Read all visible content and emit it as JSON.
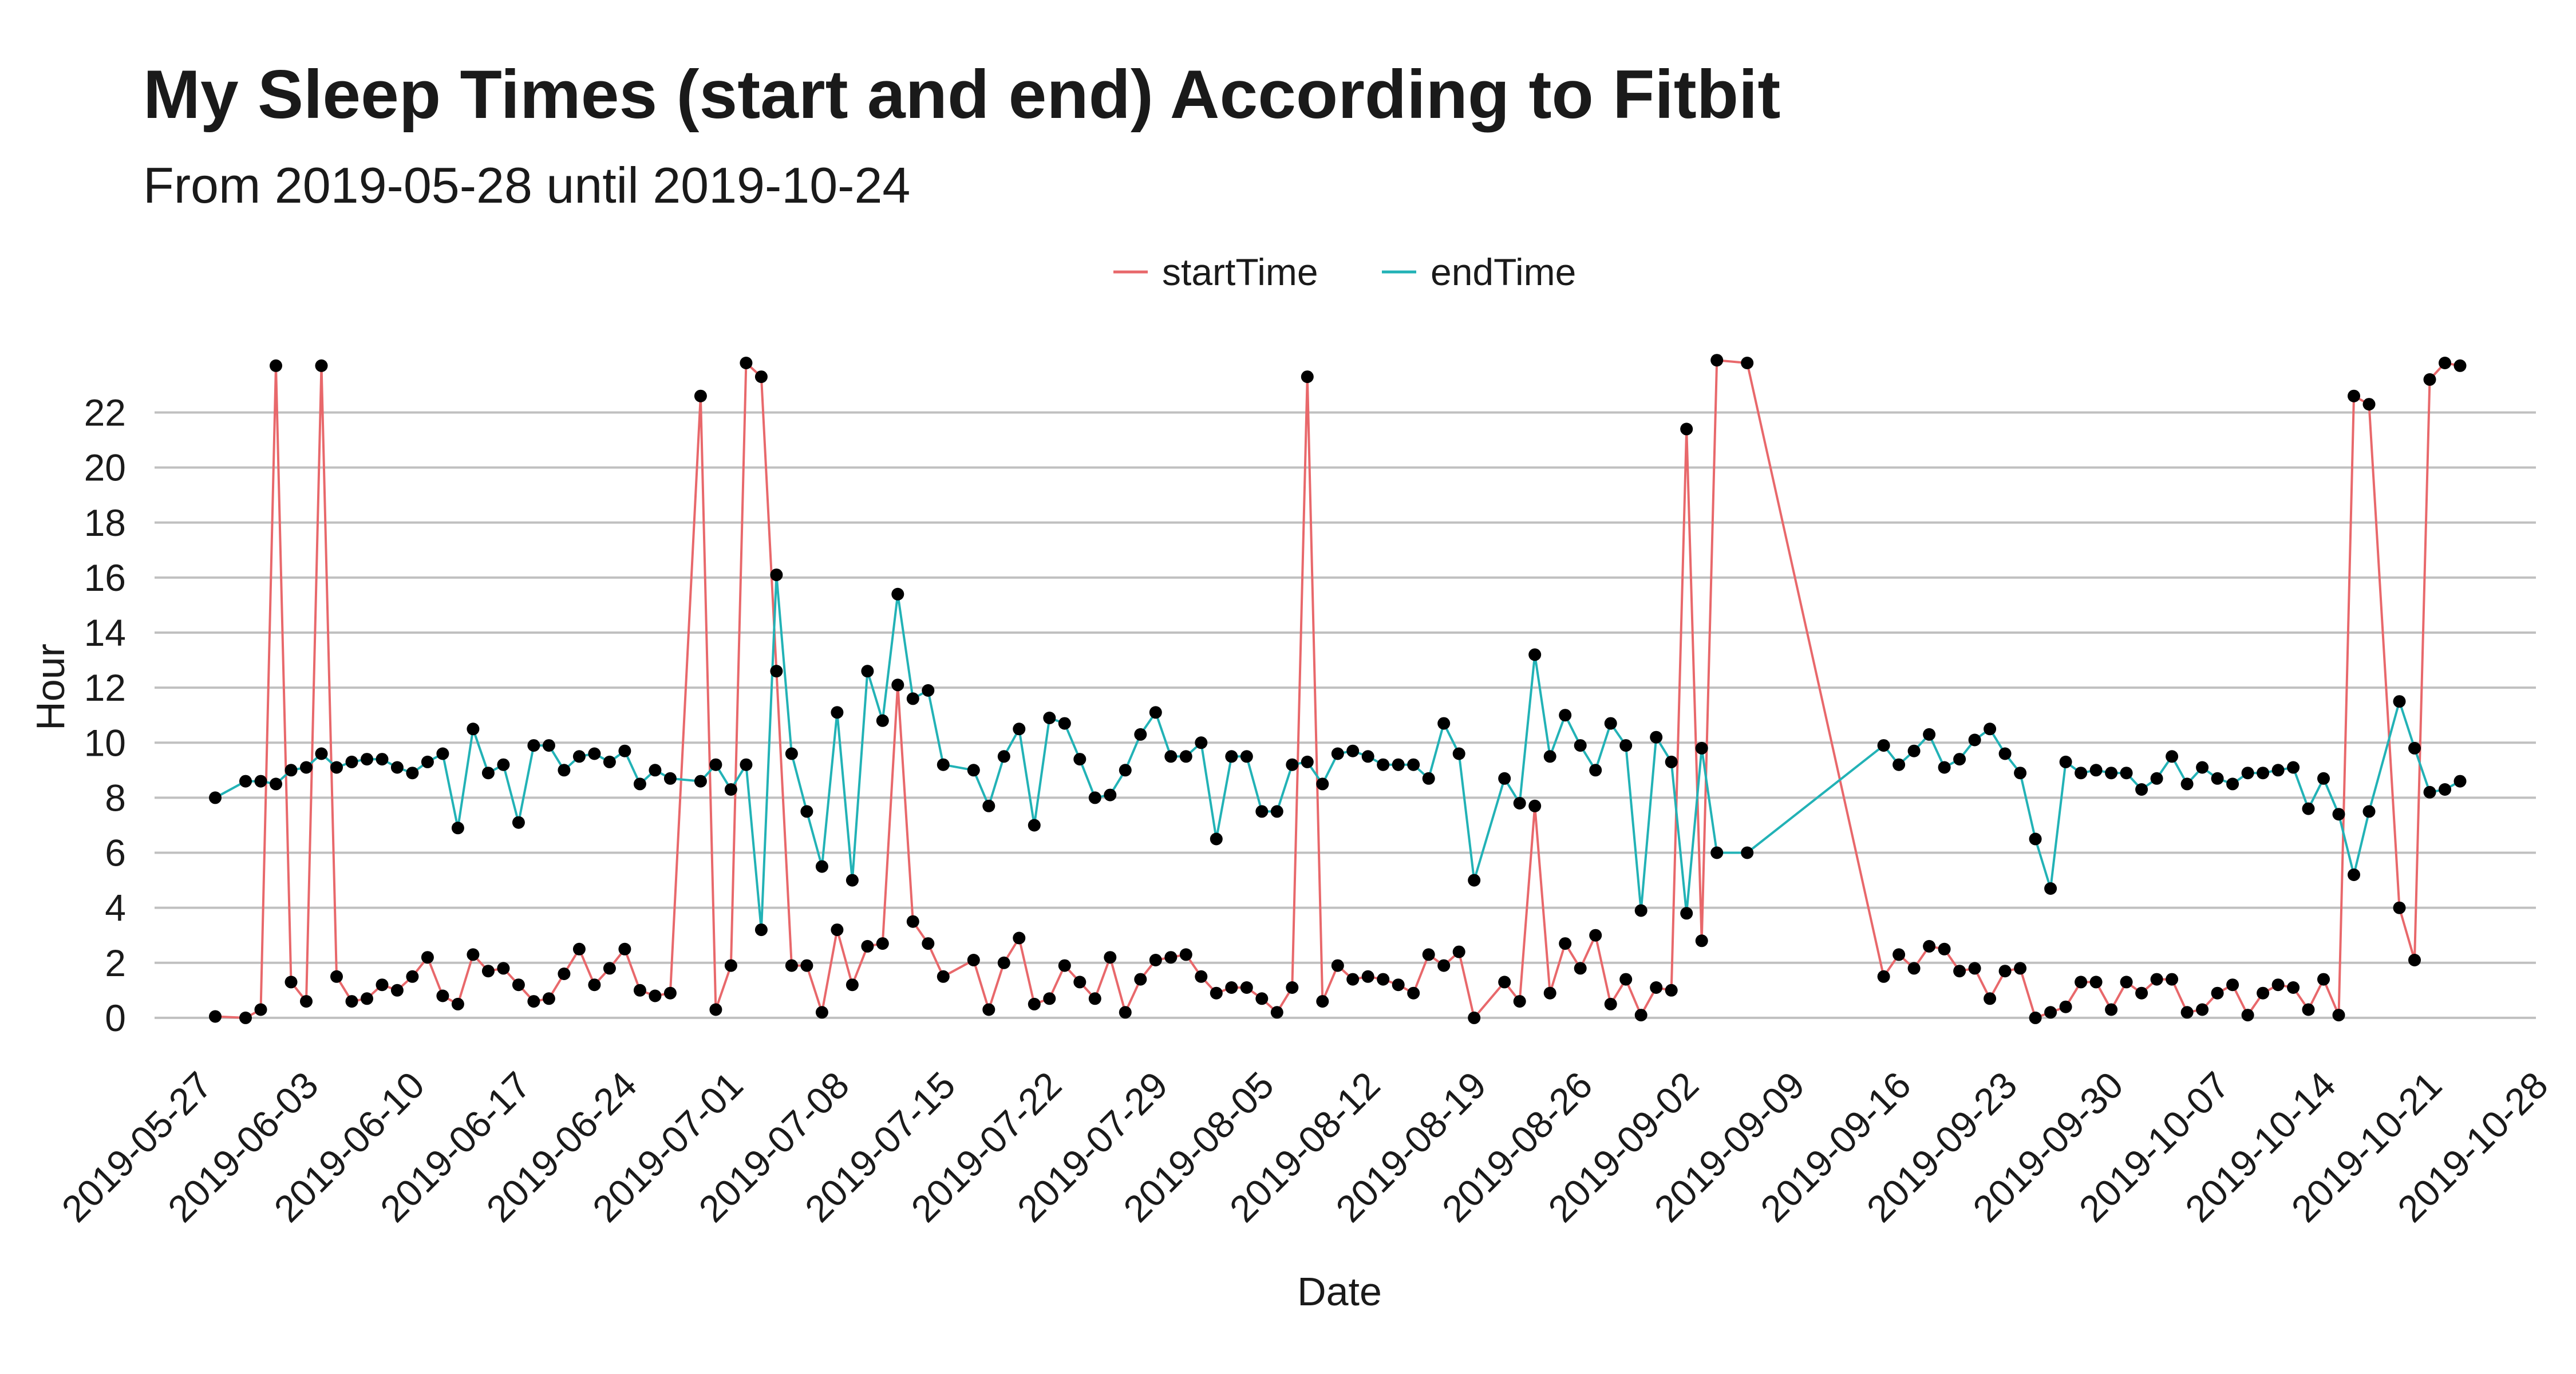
{
  "title": "My Sleep Times (start and end) According to Fitbit",
  "subtitle": "From 2019-05-28 until 2019-10-24",
  "chart_data": {
    "type": "line",
    "xlabel": "Date",
    "ylabel": "Hour",
    "ylim": [
      -1.5,
      24.3
    ],
    "y_ticks": [
      0,
      2,
      4,
      6,
      8,
      10,
      12,
      14,
      16,
      18,
      20,
      22
    ],
    "x_ticks": [
      "2019-05-27",
      "2019-06-03",
      "2019-06-10",
      "2019-06-17",
      "2019-06-24",
      "2019-07-01",
      "2019-07-08",
      "2019-07-15",
      "2019-07-22",
      "2019-07-29",
      "2019-08-05",
      "2019-08-12",
      "2019-08-19",
      "2019-08-26",
      "2019-09-02",
      "2019-09-09",
      "2019-09-16",
      "2019-09-23",
      "2019-09-30",
      "2019-10-07",
      "2019-10-14",
      "2019-10-21",
      "2019-10-28"
    ],
    "xlim": [
      "2019-05-24",
      "2019-10-28"
    ],
    "grid": true,
    "legend_position": "top",
    "point_color": "#000000",
    "series": [
      {
        "name": "startTime",
        "color": "#e8686b",
        "points": [
          [
            "2019-05-28",
            0.05
          ],
          [
            "2019-05-30",
            0.0
          ],
          [
            "2019-05-31",
            0.3
          ],
          [
            "2019-06-01",
            23.7
          ],
          [
            "2019-06-02",
            1.3
          ],
          [
            "2019-06-03",
            0.6
          ],
          [
            "2019-06-04",
            23.7
          ],
          [
            "2019-06-05",
            1.5
          ],
          [
            "2019-06-06",
            0.6
          ],
          [
            "2019-06-07",
            0.7
          ],
          [
            "2019-06-08",
            1.2
          ],
          [
            "2019-06-09",
            1.0
          ],
          [
            "2019-06-10",
            1.5
          ],
          [
            "2019-06-11",
            2.2
          ],
          [
            "2019-06-12",
            0.8
          ],
          [
            "2019-06-13",
            0.5
          ],
          [
            "2019-06-14",
            2.3
          ],
          [
            "2019-06-15",
            1.7
          ],
          [
            "2019-06-16",
            1.8
          ],
          [
            "2019-06-17",
            1.2
          ],
          [
            "2019-06-18",
            0.6
          ],
          [
            "2019-06-19",
            0.7
          ],
          [
            "2019-06-20",
            1.6
          ],
          [
            "2019-06-21",
            2.5
          ],
          [
            "2019-06-22",
            1.2
          ],
          [
            "2019-06-23",
            1.8
          ],
          [
            "2019-06-24",
            2.5
          ],
          [
            "2019-06-25",
            1.0
          ],
          [
            "2019-06-26",
            0.8
          ],
          [
            "2019-06-27",
            0.9
          ],
          [
            "2019-06-29",
            22.6
          ],
          [
            "2019-06-30",
            0.3
          ],
          [
            "2019-07-01",
            1.9
          ],
          [
            "2019-07-02",
            23.8
          ],
          [
            "2019-07-03",
            23.3
          ],
          [
            "2019-07-04",
            12.6
          ],
          [
            "2019-07-05",
            1.9
          ],
          [
            "2019-07-06",
            1.9
          ],
          [
            "2019-07-07",
            0.2
          ],
          [
            "2019-07-08",
            3.2
          ],
          [
            "2019-07-09",
            1.2
          ],
          [
            "2019-07-10",
            2.6
          ],
          [
            "2019-07-11",
            2.7
          ],
          [
            "2019-07-12",
            12.1
          ],
          [
            "2019-07-13",
            3.5
          ],
          [
            "2019-07-14",
            2.7
          ],
          [
            "2019-07-15",
            1.5
          ],
          [
            "2019-07-17",
            2.1
          ],
          [
            "2019-07-18",
            0.3
          ],
          [
            "2019-07-19",
            2.0
          ],
          [
            "2019-07-20",
            2.9
          ],
          [
            "2019-07-21",
            0.5
          ],
          [
            "2019-07-22",
            0.7
          ],
          [
            "2019-07-23",
            1.9
          ],
          [
            "2019-07-24",
            1.3
          ],
          [
            "2019-07-25",
            0.7
          ],
          [
            "2019-07-26",
            2.2
          ],
          [
            "2019-07-27",
            0.2
          ],
          [
            "2019-07-28",
            1.4
          ],
          [
            "2019-07-29",
            2.1
          ],
          [
            "2019-07-30",
            2.2
          ],
          [
            "2019-07-31",
            2.3
          ],
          [
            "2019-08-01",
            1.5
          ],
          [
            "2019-08-02",
            0.9
          ],
          [
            "2019-08-03",
            1.1
          ],
          [
            "2019-08-04",
            1.1
          ],
          [
            "2019-08-05",
            0.7
          ],
          [
            "2019-08-06",
            0.2
          ],
          [
            "2019-08-07",
            1.1
          ],
          [
            "2019-08-08",
            23.3
          ],
          [
            "2019-08-09",
            0.6
          ],
          [
            "2019-08-10",
            1.9
          ],
          [
            "2019-08-11",
            1.4
          ],
          [
            "2019-08-12",
            1.5
          ],
          [
            "2019-08-13",
            1.4
          ],
          [
            "2019-08-14",
            1.2
          ],
          [
            "2019-08-15",
            0.9
          ],
          [
            "2019-08-16",
            2.3
          ],
          [
            "2019-08-17",
            1.9
          ],
          [
            "2019-08-18",
            2.4
          ],
          [
            "2019-08-19",
            0.0
          ],
          [
            "2019-08-21",
            1.3
          ],
          [
            "2019-08-22",
            0.6
          ],
          [
            "2019-08-23",
            7.7
          ],
          [
            "2019-08-24",
            0.9
          ],
          [
            "2019-08-25",
            2.7
          ],
          [
            "2019-08-26",
            1.8
          ],
          [
            "2019-08-27",
            3.0
          ],
          [
            "2019-08-28",
            0.5
          ],
          [
            "2019-08-29",
            1.4
          ],
          [
            "2019-08-30",
            0.1
          ],
          [
            "2019-08-31",
            1.1
          ],
          [
            "2019-09-01",
            1.0
          ],
          [
            "2019-09-02",
            21.4
          ],
          [
            "2019-09-03",
            2.8
          ],
          [
            "2019-09-04",
            23.9
          ],
          [
            "2019-09-06",
            23.8
          ],
          [
            "2019-09-15",
            1.5
          ],
          [
            "2019-09-16",
            2.3
          ],
          [
            "2019-09-17",
            1.8
          ],
          [
            "2019-09-18",
            2.6
          ],
          [
            "2019-09-19",
            2.5
          ],
          [
            "2019-09-20",
            1.7
          ],
          [
            "2019-09-21",
            1.8
          ],
          [
            "2019-09-22",
            0.7
          ],
          [
            "2019-09-23",
            1.7
          ],
          [
            "2019-09-24",
            1.8
          ],
          [
            "2019-09-25",
            0.0
          ],
          [
            "2019-09-26",
            0.2
          ],
          [
            "2019-09-27",
            0.4
          ],
          [
            "2019-09-28",
            1.3
          ],
          [
            "2019-09-29",
            1.3
          ],
          [
            "2019-09-30",
            0.3
          ],
          [
            "2019-10-01",
            1.3
          ],
          [
            "2019-10-02",
            0.9
          ],
          [
            "2019-10-03",
            1.4
          ],
          [
            "2019-10-04",
            1.4
          ],
          [
            "2019-10-05",
            0.2
          ],
          [
            "2019-10-06",
            0.3
          ],
          [
            "2019-10-07",
            0.9
          ],
          [
            "2019-10-08",
            1.2
          ],
          [
            "2019-10-09",
            0.1
          ],
          [
            "2019-10-10",
            0.9
          ],
          [
            "2019-10-11",
            1.2
          ],
          [
            "2019-10-12",
            1.1
          ],
          [
            "2019-10-13",
            0.3
          ],
          [
            "2019-10-14",
            1.4
          ],
          [
            "2019-10-15",
            0.1
          ],
          [
            "2019-10-16",
            22.6
          ],
          [
            "2019-10-17",
            22.3
          ],
          [
            "2019-10-19",
            4.0
          ],
          [
            "2019-10-20",
            2.1
          ],
          [
            "2019-10-21",
            23.2
          ],
          [
            "2019-10-22",
            23.8
          ],
          [
            "2019-10-23",
            23.7
          ]
        ]
      },
      {
        "name": "endTime",
        "color": "#22b2b6",
        "points": [
          [
            "2019-05-28",
            8.0
          ],
          [
            "2019-05-30",
            8.6
          ],
          [
            "2019-05-31",
            8.6
          ],
          [
            "2019-06-01",
            8.5
          ],
          [
            "2019-06-02",
            9.0
          ],
          [
            "2019-06-03",
            9.1
          ],
          [
            "2019-06-04",
            9.6
          ],
          [
            "2019-06-05",
            9.1
          ],
          [
            "2019-06-06",
            9.3
          ],
          [
            "2019-06-07",
            9.4
          ],
          [
            "2019-06-08",
            9.4
          ],
          [
            "2019-06-09",
            9.1
          ],
          [
            "2019-06-10",
            8.9
          ],
          [
            "2019-06-11",
            9.3
          ],
          [
            "2019-06-12",
            9.6
          ],
          [
            "2019-06-13",
            6.9
          ],
          [
            "2019-06-14",
            10.5
          ],
          [
            "2019-06-15",
            8.9
          ],
          [
            "2019-06-16",
            9.2
          ],
          [
            "2019-06-17",
            7.1
          ],
          [
            "2019-06-18",
            9.9
          ],
          [
            "2019-06-19",
            9.9
          ],
          [
            "2019-06-20",
            9.0
          ],
          [
            "2019-06-21",
            9.5
          ],
          [
            "2019-06-22",
            9.6
          ],
          [
            "2019-06-23",
            9.3
          ],
          [
            "2019-06-24",
            9.7
          ],
          [
            "2019-06-25",
            8.5
          ],
          [
            "2019-06-26",
            9.0
          ],
          [
            "2019-06-27",
            8.7
          ],
          [
            "2019-06-29",
            8.6
          ],
          [
            "2019-06-30",
            9.2
          ],
          [
            "2019-07-01",
            8.3
          ],
          [
            "2019-07-02",
            9.2
          ],
          [
            "2019-07-03",
            3.2
          ],
          [
            "2019-07-04",
            16.1
          ],
          [
            "2019-07-05",
            9.6
          ],
          [
            "2019-07-06",
            7.5
          ],
          [
            "2019-07-07",
            5.5
          ],
          [
            "2019-07-08",
            11.1
          ],
          [
            "2019-07-09",
            5.0
          ],
          [
            "2019-07-10",
            12.6
          ],
          [
            "2019-07-11",
            10.8
          ],
          [
            "2019-07-12",
            15.4
          ],
          [
            "2019-07-13",
            11.6
          ],
          [
            "2019-07-14",
            11.9
          ],
          [
            "2019-07-15",
            9.2
          ],
          [
            "2019-07-17",
            9.0
          ],
          [
            "2019-07-18",
            7.7
          ],
          [
            "2019-07-19",
            9.5
          ],
          [
            "2019-07-20",
            10.5
          ],
          [
            "2019-07-21",
            7.0
          ],
          [
            "2019-07-22",
            10.9
          ],
          [
            "2019-07-23",
            10.7
          ],
          [
            "2019-07-24",
            9.4
          ],
          [
            "2019-07-25",
            8.0
          ],
          [
            "2019-07-26",
            8.1
          ],
          [
            "2019-07-27",
            9.0
          ],
          [
            "2019-07-28",
            10.3
          ],
          [
            "2019-07-29",
            11.1
          ],
          [
            "2019-07-30",
            9.5
          ],
          [
            "2019-07-31",
            9.5
          ],
          [
            "2019-08-01",
            10.0
          ],
          [
            "2019-08-02",
            6.5
          ],
          [
            "2019-08-03",
            9.5
          ],
          [
            "2019-08-04",
            9.5
          ],
          [
            "2019-08-05",
            7.5
          ],
          [
            "2019-08-06",
            7.5
          ],
          [
            "2019-08-07",
            9.2
          ],
          [
            "2019-08-08",
            9.3
          ],
          [
            "2019-08-09",
            8.5
          ],
          [
            "2019-08-10",
            9.6
          ],
          [
            "2019-08-11",
            9.7
          ],
          [
            "2019-08-12",
            9.5
          ],
          [
            "2019-08-13",
            9.2
          ],
          [
            "2019-08-14",
            9.2
          ],
          [
            "2019-08-15",
            9.2
          ],
          [
            "2019-08-16",
            8.7
          ],
          [
            "2019-08-17",
            10.7
          ],
          [
            "2019-08-18",
            9.6
          ],
          [
            "2019-08-19",
            5.0
          ],
          [
            "2019-08-21",
            8.7
          ],
          [
            "2019-08-22",
            7.8
          ],
          [
            "2019-08-23",
            13.2
          ],
          [
            "2019-08-24",
            9.5
          ],
          [
            "2019-08-25",
            11.0
          ],
          [
            "2019-08-26",
            9.9
          ],
          [
            "2019-08-27",
            9.0
          ],
          [
            "2019-08-28",
            10.7
          ],
          [
            "2019-08-29",
            9.9
          ],
          [
            "2019-08-30",
            3.9
          ],
          [
            "2019-08-31",
            10.2
          ],
          [
            "2019-09-01",
            9.3
          ],
          [
            "2019-09-02",
            3.8
          ],
          [
            "2019-09-03",
            9.8
          ],
          [
            "2019-09-04",
            6.0
          ],
          [
            "2019-09-06",
            6.0
          ],
          [
            "2019-09-15",
            9.9
          ],
          [
            "2019-09-16",
            9.2
          ],
          [
            "2019-09-17",
            9.7
          ],
          [
            "2019-09-18",
            10.3
          ],
          [
            "2019-09-19",
            9.1
          ],
          [
            "2019-09-20",
            9.4
          ],
          [
            "2019-09-21",
            10.1
          ],
          [
            "2019-09-22",
            10.5
          ],
          [
            "2019-09-23",
            9.6
          ],
          [
            "2019-09-24",
            8.9
          ],
          [
            "2019-09-25",
            6.5
          ],
          [
            "2019-09-26",
            4.7
          ],
          [
            "2019-09-27",
            9.3
          ],
          [
            "2019-09-28",
            8.9
          ],
          [
            "2019-09-29",
            9.0
          ],
          [
            "2019-09-30",
            8.9
          ],
          [
            "2019-10-01",
            8.9
          ],
          [
            "2019-10-02",
            8.3
          ],
          [
            "2019-10-03",
            8.7
          ],
          [
            "2019-10-04",
            9.5
          ],
          [
            "2019-10-05",
            8.5
          ],
          [
            "2019-10-06",
            9.1
          ],
          [
            "2019-10-07",
            8.7
          ],
          [
            "2019-10-08",
            8.5
          ],
          [
            "2019-10-09",
            8.9
          ],
          [
            "2019-10-10",
            8.9
          ],
          [
            "2019-10-11",
            9.0
          ],
          [
            "2019-10-12",
            9.1
          ],
          [
            "2019-10-13",
            7.6
          ],
          [
            "2019-10-14",
            8.7
          ],
          [
            "2019-10-15",
            7.4
          ],
          [
            "2019-10-16",
            5.2
          ],
          [
            "2019-10-17",
            7.5
          ],
          [
            "2019-10-19",
            11.5
          ],
          [
            "2019-10-20",
            9.8
          ],
          [
            "2019-10-21",
            8.2
          ],
          [
            "2019-10-22",
            8.3
          ],
          [
            "2019-10-23",
            8.6
          ]
        ]
      }
    ]
  }
}
